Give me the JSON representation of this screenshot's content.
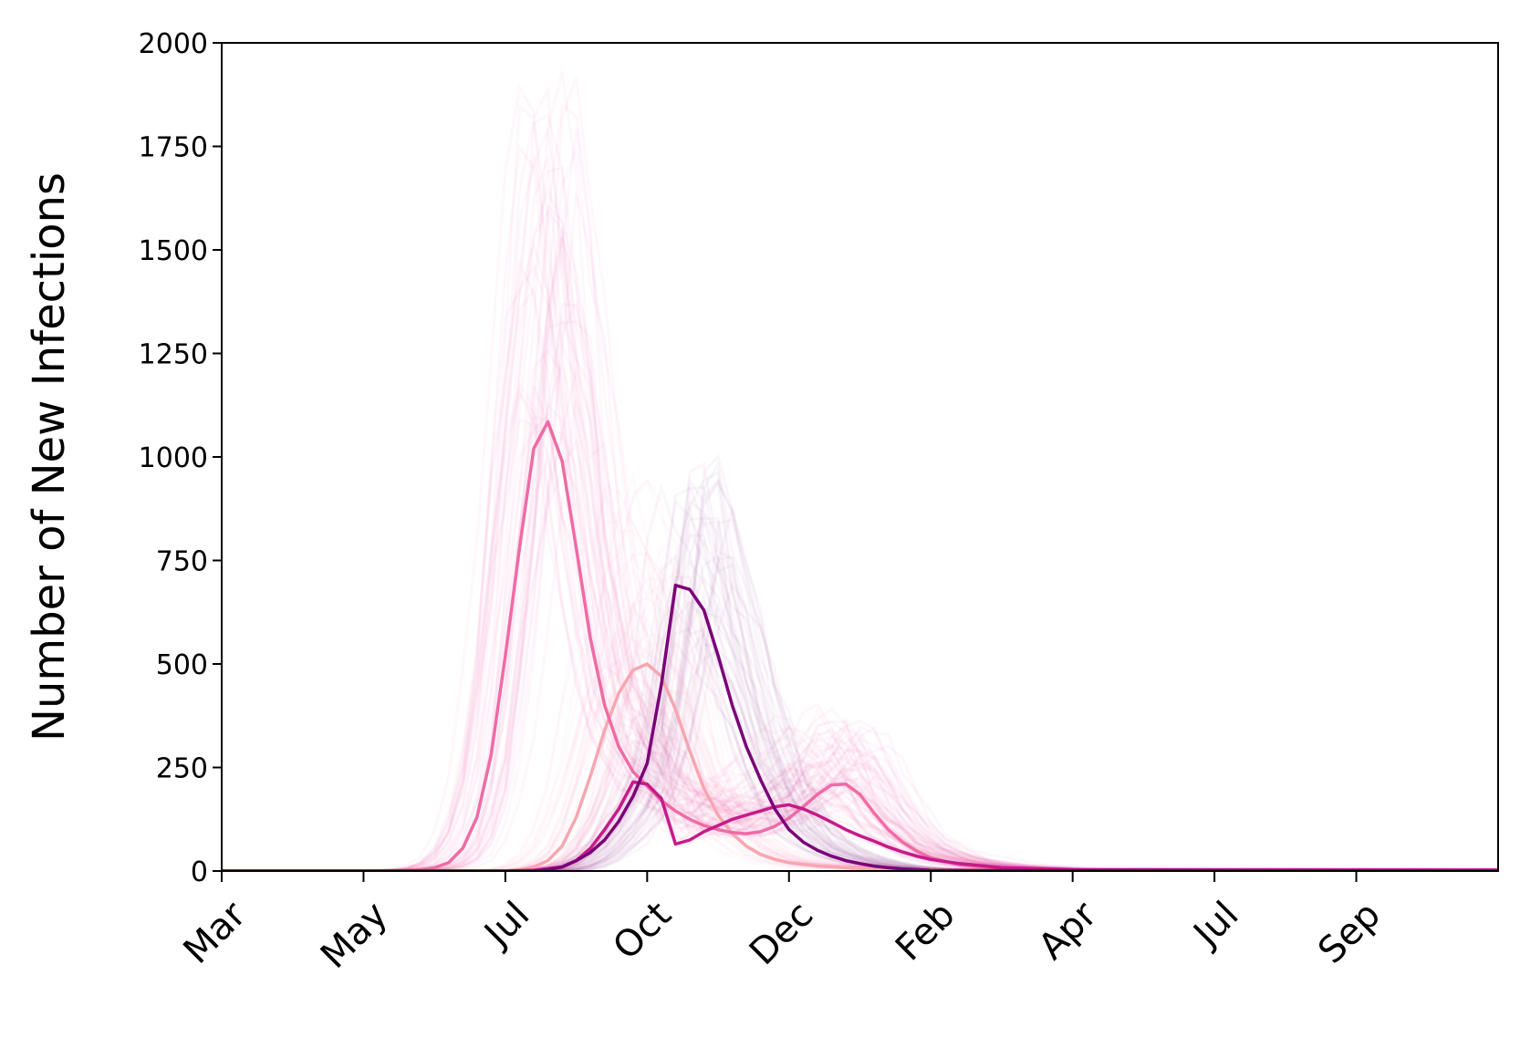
{
  "chart_data": {
    "type": "line",
    "title": "",
    "xlabel": "",
    "ylabel": "Number of New Infections",
    "ylim": [
      0,
      2000
    ],
    "yticks": [
      0,
      250,
      500,
      750,
      1000,
      1250,
      1500,
      1750,
      2000
    ],
    "x_unit": "weeks since start of axis (first tick = Mar)",
    "xlim": [
      0,
      90
    ],
    "xticks": [
      {
        "label": "Mar",
        "x": 0
      },
      {
        "label": "May",
        "x": 10
      },
      {
        "label": "Jul",
        "x": 20
      },
      {
        "label": "Oct",
        "x": 30
      },
      {
        "label": "Dec",
        "x": 40
      },
      {
        "label": "Feb",
        "x": 50
      },
      {
        "label": "Apr",
        "x": 60
      },
      {
        "label": "Jul",
        "x": 70
      },
      {
        "label": "Sep",
        "x": 80
      }
    ],
    "grid": false,
    "series": [
      {
        "color": "#f06aa5",
        "points": [
          [
            0,
            0
          ],
          [
            12,
            0
          ],
          [
            14,
            3
          ],
          [
            15,
            8
          ],
          [
            16,
            20
          ],
          [
            17,
            55
          ],
          [
            18,
            130
          ],
          [
            19,
            280
          ],
          [
            20,
            520
          ],
          [
            21,
            780
          ],
          [
            22,
            1020
          ],
          [
            23,
            1085
          ],
          [
            24,
            990
          ],
          [
            25,
            780
          ],
          [
            26,
            560
          ],
          [
            27,
            400
          ],
          [
            28,
            300
          ],
          [
            29,
            240
          ],
          [
            30,
            205
          ],
          [
            31,
            170
          ],
          [
            32,
            145
          ],
          [
            33,
            125
          ],
          [
            34,
            110
          ],
          [
            35,
            100
          ],
          [
            36,
            93
          ],
          [
            37,
            90
          ],
          [
            38,
            95
          ],
          [
            39,
            108
          ],
          [
            40,
            128
          ],
          [
            41,
            155
          ],
          [
            42,
            185
          ],
          [
            43,
            208
          ],
          [
            44,
            210
          ],
          [
            45,
            185
          ],
          [
            46,
            140
          ],
          [
            47,
            100
          ],
          [
            48,
            70
          ],
          [
            49,
            48
          ],
          [
            50,
            32
          ],
          [
            52,
            15
          ],
          [
            55,
            6
          ],
          [
            60,
            2
          ],
          [
            90,
            2
          ]
        ]
      },
      {
        "color": "#f7a6b0",
        "points": [
          [
            0,
            0
          ],
          [
            20,
            0
          ],
          [
            21,
            3
          ],
          [
            22,
            10
          ],
          [
            23,
            25
          ],
          [
            24,
            60
          ],
          [
            25,
            130
          ],
          [
            26,
            230
          ],
          [
            27,
            340
          ],
          [
            28,
            430
          ],
          [
            29,
            485
          ],
          [
            30,
            500
          ],
          [
            31,
            470
          ],
          [
            32,
            390
          ],
          [
            33,
            290
          ],
          [
            34,
            200
          ],
          [
            35,
            135
          ],
          [
            36,
            90
          ],
          [
            37,
            60
          ],
          [
            38,
            40
          ],
          [
            39,
            28
          ],
          [
            40,
            20
          ],
          [
            42,
            12
          ],
          [
            45,
            6
          ],
          [
            50,
            3
          ],
          [
            60,
            1
          ],
          [
            90,
            1
          ]
        ]
      },
      {
        "color": "#c51b8a",
        "points": [
          [
            0,
            0
          ],
          [
            20,
            0
          ],
          [
            22,
            2
          ],
          [
            24,
            10
          ],
          [
            25,
            25
          ],
          [
            26,
            55
          ],
          [
            27,
            100
          ],
          [
            28,
            150
          ],
          [
            29,
            215
          ],
          [
            30,
            210
          ],
          [
            31,
            175
          ],
          [
            32,
            65
          ],
          [
            33,
            75
          ],
          [
            34,
            95
          ],
          [
            35,
            110
          ],
          [
            36,
            125
          ],
          [
            37,
            135
          ],
          [
            38,
            145
          ],
          [
            39,
            155
          ],
          [
            40,
            160
          ],
          [
            41,
            150
          ],
          [
            42,
            135
          ],
          [
            43,
            118
          ],
          [
            44,
            100
          ],
          [
            45,
            85
          ],
          [
            46,
            72
          ],
          [
            47,
            58
          ],
          [
            48,
            46
          ],
          [
            49,
            36
          ],
          [
            50,
            28
          ],
          [
            52,
            18
          ],
          [
            55,
            8
          ],
          [
            60,
            3
          ],
          [
            90,
            2
          ]
        ]
      },
      {
        "color": "#7a0177",
        "points": [
          [
            0,
            0
          ],
          [
            22,
            0
          ],
          [
            23,
            3
          ],
          [
            24,
            10
          ],
          [
            25,
            25
          ],
          [
            26,
            45
          ],
          [
            27,
            75
          ],
          [
            28,
            120
          ],
          [
            29,
            180
          ],
          [
            30,
            260
          ],
          [
            31,
            450
          ],
          [
            32,
            690
          ],
          [
            33,
            680
          ],
          [
            34,
            630
          ],
          [
            35,
            520
          ],
          [
            36,
            400
          ],
          [
            37,
            300
          ],
          [
            38,
            220
          ],
          [
            39,
            150
          ],
          [
            40,
            100
          ],
          [
            41,
            70
          ],
          [
            42,
            50
          ],
          [
            43,
            36
          ],
          [
            44,
            25
          ],
          [
            45,
            18
          ],
          [
            46,
            12
          ],
          [
            47,
            8
          ],
          [
            48,
            5
          ],
          [
            50,
            2
          ],
          [
            55,
            1
          ],
          [
            90,
            0
          ]
        ]
      }
    ]
  }
}
